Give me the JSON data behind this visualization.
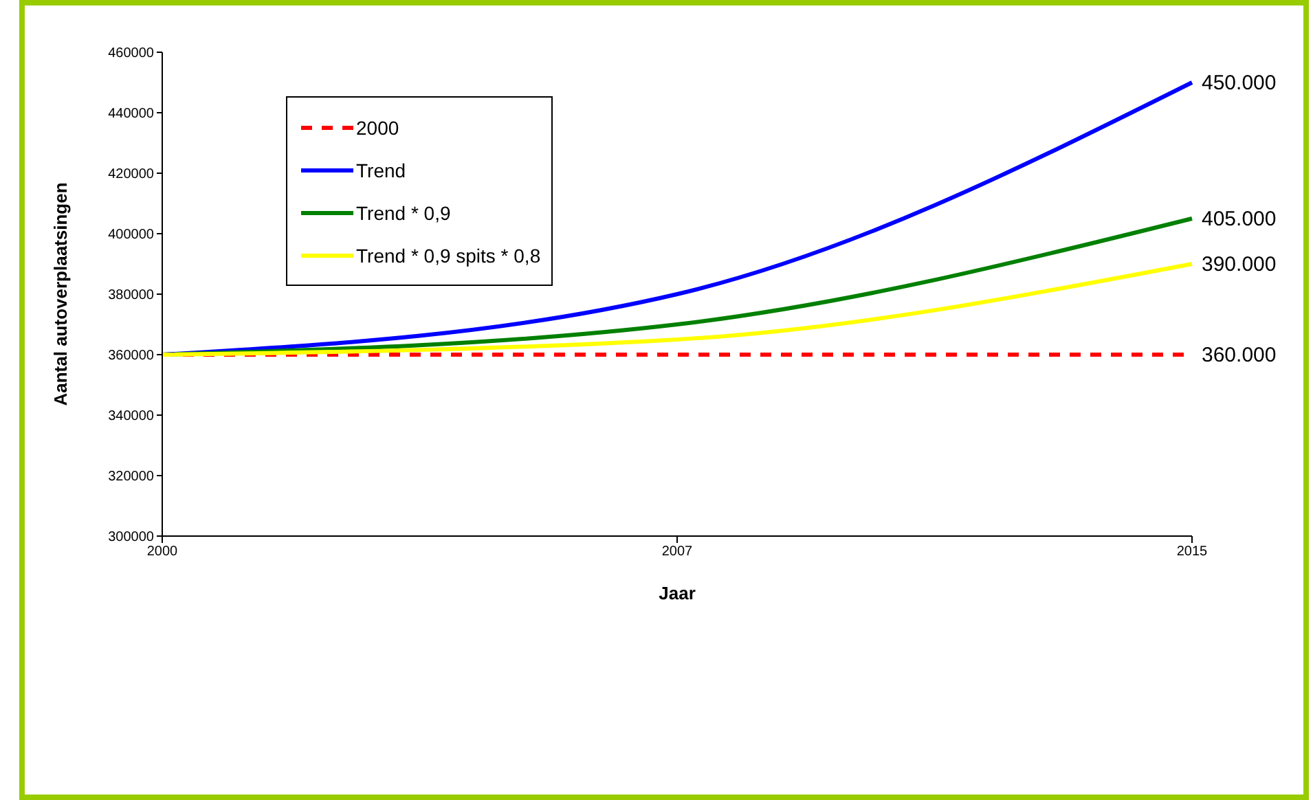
{
  "chart_data": {
    "type": "line",
    "xlabel": "Jaar",
    "ylabel": "Aantal autoverplaatsingen",
    "categories": [
      "2000",
      "2007",
      "2015"
    ],
    "ylim": [
      300000,
      460000
    ],
    "yticks": [
      300000,
      320000,
      340000,
      360000,
      380000,
      400000,
      420000,
      440000,
      460000
    ],
    "grid": false,
    "legend": "top left",
    "marker": "none",
    "series": [
      {
        "name": "2000",
        "color": "#ff0000",
        "line_style": "dashed",
        "values": [
          360000,
          360000,
          360000
        ],
        "value_labels": [
          null,
          null,
          "360.000"
        ]
      },
      {
        "name": "Trend",
        "color": "#0000ff",
        "line_style": "solid",
        "values": [
          360000,
          380000,
          450000
        ],
        "value_labels": [
          null,
          null,
          "450.000"
        ]
      },
      {
        "name": "Trend * 0,9",
        "color": "#008000",
        "line_style": "solid",
        "values": [
          360000,
          370000,
          405000
        ],
        "value_labels": [
          null,
          null,
          "405.000"
        ]
      },
      {
        "name": "Trend * 0,9 spits * 0,8",
        "color": "#ffff00",
        "line_style": "solid",
        "values": [
          360000,
          365000,
          390000
        ],
        "value_labels": [
          null,
          null,
          "390.000"
        ]
      }
    ]
  }
}
